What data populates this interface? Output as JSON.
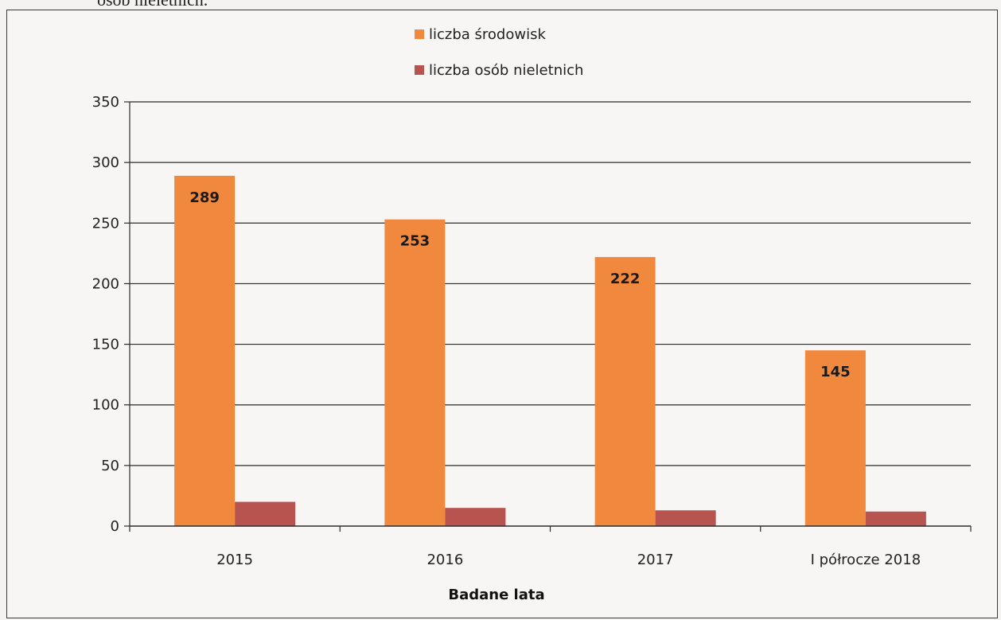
{
  "page": {
    "top_text": "osób nieletnich."
  },
  "chart_data": {
    "type": "bar",
    "title": "",
    "xlabel": "Badane lata",
    "ylabel": "",
    "categories": [
      "2015",
      "2016",
      "2017",
      "I półrocze 2018"
    ],
    "series": [
      {
        "name": "liczba środowisk",
        "values": [
          289,
          253,
          222,
          145
        ],
        "color": "#f0883e",
        "data_labels": true
      },
      {
        "name": "liczba osób nieletnich",
        "values": [
          20,
          15,
          13,
          12
        ],
        "color": "#b85450",
        "data_labels": false
      }
    ],
    "ylim": [
      0,
      350
    ],
    "yticks": [
      0,
      50,
      100,
      150,
      200,
      250,
      300,
      350
    ],
    "grid": true,
    "legend_position": "top-center"
  }
}
